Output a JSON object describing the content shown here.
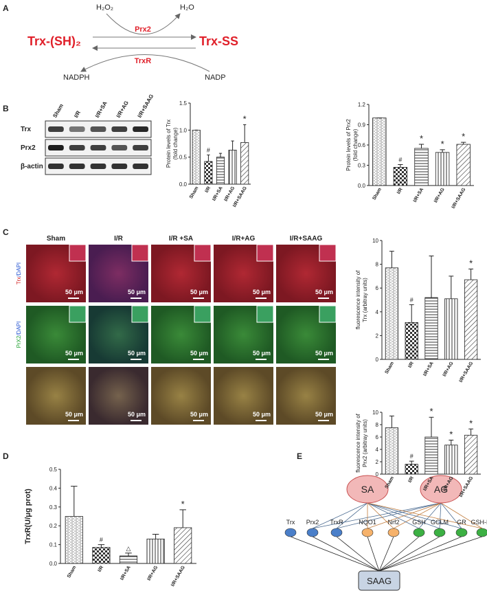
{
  "panel_letters": [
    "A",
    "B",
    "C",
    "D",
    "E"
  ],
  "reaction": {
    "h2o2": "H₂O₂",
    "h2o": "H₂O",
    "reduced": "Trx-(SH)₂",
    "oxidized": "Trx-SS",
    "forward_enzyme": "Prx2",
    "reverse_enzyme": "TrxR",
    "nadph": "NADPH",
    "nadp": "NADP"
  },
  "blot": {
    "lanes": [
      "Sham",
      "I/R",
      "I/R+SA",
      "I/R+AG",
      "I/R+SAAG"
    ],
    "rows": [
      "Trx",
      "Prx2",
      "β-actin"
    ]
  },
  "micro": {
    "columns": [
      "Sham",
      "I/R",
      "I/R +SA",
      "I/R+AG",
      "I/R+SAAG"
    ],
    "row_labels": [
      {
        "stain": "Trx",
        "counter": "/DAPI"
      },
      {
        "stain": "PrX2",
        "counter": "/DAPI"
      }
    ],
    "scale_bar": "50 μm"
  },
  "network": {
    "top": [
      "SA",
      "AG"
    ],
    "nodes": [
      {
        "label": "Trx",
        "color": "#4a7fc9"
      },
      {
        "label": "Prx2",
        "color": "#4a7fc9"
      },
      {
        "label": "TrxR",
        "color": "#4a7fc9"
      },
      {
        "label": "NQO1",
        "color": "#f6b26b"
      },
      {
        "label": "Nrf2",
        "color": "#f6b26b"
      },
      {
        "label": "GSH",
        "color": "#3cb043"
      },
      {
        "label": "GCLM",
        "color": "#3cb043"
      },
      {
        "label": "GR",
        "color": "#3cb043"
      },
      {
        "label": "GSH-Px",
        "color": "#3cb043"
      }
    ],
    "bottom": "SAAG"
  },
  "chart_data": [
    {
      "type": "bar",
      "ylabel": [
        "Protein levels of Trx",
        "(fold change)"
      ],
      "categories": [
        "Sham",
        "I/R",
        "I/R+SA",
        "I/R+AG",
        "I/R+SAAG"
      ],
      "values": [
        1.0,
        0.42,
        0.5,
        0.63,
        0.77
      ],
      "errors": [
        0,
        0.12,
        0.07,
        0.17,
        0.33
      ],
      "annotations": [
        null,
        "#",
        null,
        null,
        "*"
      ],
      "ylim": [
        0,
        1.5
      ],
      "yticks": [
        {
          "value": 0,
          "label": "0.0"
        },
        0.5,
        {
          "value": 1,
          "label": "1.0"
        },
        1.5
      ]
    },
    {
      "type": "bar",
      "ylabel": [
        "Protein levels of Prx2",
        "(fold change)"
      ],
      "categories": [
        "Sham",
        "I/R",
        "I/R+SA",
        "I/R+AG",
        "I/R+SAAG"
      ],
      "values": [
        1.0,
        0.27,
        0.55,
        0.49,
        0.61
      ],
      "errors": [
        0,
        0.04,
        0.06,
        0.04,
        0.03
      ],
      "annotations": [
        null,
        "#",
        "*",
        "*",
        "*"
      ],
      "ylim": [
        0,
        1.2
      ],
      "yticks": [
        {
          "value": 0,
          "label": "0.0"
        },
        0.3,
        0.6,
        0.9,
        1.2
      ]
    },
    {
      "type": "bar",
      "ylabel": [
        "fluorescence intensity of",
        "Trx (arbitray units)"
      ],
      "categories": [
        "Sham",
        "I/R",
        "I/R+SA",
        "I/R+AG",
        "I/R+SAAG"
      ],
      "values": [
        7.7,
        3.1,
        5.2,
        5.1,
        6.7
      ],
      "errors": [
        1.4,
        1.5,
        3.5,
        1.9,
        0.9
      ],
      "annotations": [
        null,
        "#",
        null,
        null,
        "*"
      ],
      "ylim": [
        0,
        10
      ],
      "yticks": [
        0,
        2,
        4,
        6,
        8,
        10
      ]
    },
    {
      "type": "bar",
      "ylabel": [
        "fluorescence intensity of",
        "Prx2 (arbitray units)"
      ],
      "categories": [
        "Sham",
        "I/R",
        "I/R+SA",
        "I/R+AG",
        "I/R+SAAG"
      ],
      "values": [
        7.5,
        1.6,
        6.0,
        4.7,
        6.3
      ],
      "errors": [
        1.9,
        0.5,
        3.2,
        0.8,
        1.0
      ],
      "annotations": [
        null,
        "#",
        "*",
        "*",
        "*"
      ],
      "ylim": [
        0,
        10
      ],
      "yticks": [
        0,
        2,
        4,
        6,
        8,
        10
      ]
    },
    {
      "type": "bar",
      "ylabel": [
        "TrxR(U/μg prot)"
      ],
      "categories": [
        "Sham",
        "I/R",
        "I/R+SA",
        "I/R+AG",
        "I/R+SAAG"
      ],
      "values": [
        0.25,
        0.085,
        0.04,
        0.13,
        0.19
      ],
      "errors": [
        0.16,
        0.015,
        0.015,
        0.025,
        0.095
      ],
      "annotations": [
        null,
        "#",
        "△",
        null,
        "*"
      ],
      "ylim": [
        0,
        0.5
      ],
      "yticks": [
        {
          "value": 0,
          "label": "0.0"
        },
        0.1,
        0.2,
        0.3,
        0.4,
        0.5
      ]
    }
  ]
}
